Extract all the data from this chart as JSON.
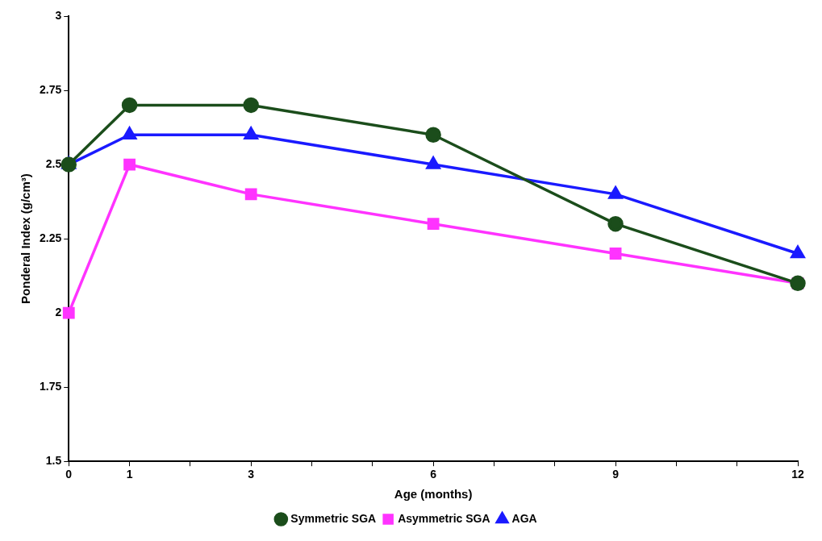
{
  "chart_data": {
    "type": "line",
    "xlabel": "Age (months)",
    "ylabel": "Ponderal Index (g/cm³)",
    "x": [
      0,
      1,
      3,
      6,
      9,
      12
    ],
    "series": [
      {
        "name": "Symmetric SGA",
        "color": "#1b4d1b",
        "marker": "circle",
        "values": [
          2.5,
          2.7,
          2.7,
          2.6,
          2.3,
          2.1
        ]
      },
      {
        "name": "Asymmetric SGA",
        "color": "#ff33ff",
        "marker": "square",
        "values": [
          2.0,
          2.5,
          2.4,
          2.3,
          2.2,
          2.1
        ]
      },
      {
        "name": "AGA",
        "color": "#1a1aff",
        "marker": "triangle",
        "values": [
          2.5,
          2.6,
          2.6,
          2.5,
          2.4,
          2.2
        ]
      }
    ],
    "xlim": [
      0,
      12
    ],
    "xticks": [
      0,
      1,
      {
        "value": 2,
        "label": null
      },
      3,
      {
        "value": 4,
        "label": null
      },
      {
        "value": 5,
        "label": null
      },
      6,
      {
        "value": 7,
        "label": null
      },
      {
        "value": 8,
        "label": null
      },
      9,
      {
        "value": 10,
        "label": null
      },
      {
        "value": 11,
        "label": null
      },
      12
    ],
    "ylim": [
      1.5,
      3
    ],
    "yticks": [
      1.5,
      1.75,
      2,
      2.25,
      2.5,
      2.75,
      3
    ],
    "grid": false,
    "legend": "bottom",
    "line_style": "solid"
  }
}
